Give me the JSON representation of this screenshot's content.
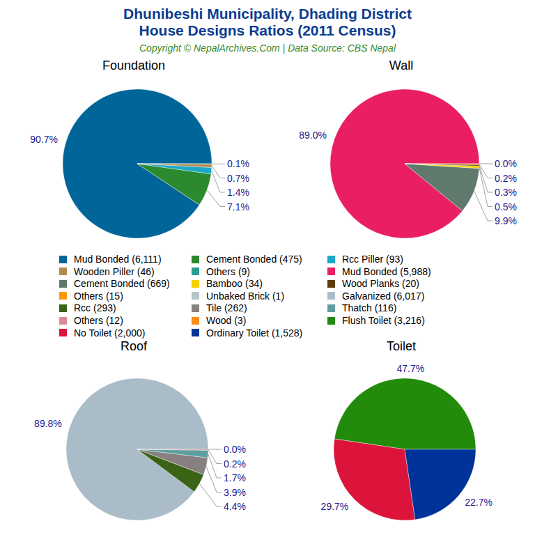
{
  "title": [
    "Dhunibeshi Municipality, Dhading District",
    "House Designs Ratios (2011 Census)"
  ],
  "subtitle": "Copyright © NepalArchives.Com | Data Source: CBS Nepal",
  "chart_data": [
    {
      "type": "pie",
      "title": "Foundation",
      "categories": [
        "Mud Bonded (6,111)",
        "Cement Bonded (475)",
        "Rcc Piller (93)",
        "Wooden Piller (46)",
        "Others (9)"
      ],
      "values": [
        90.7,
        7.1,
        1.4,
        0.7,
        0.1
      ],
      "value_labels": [
        "90.7%",
        "7.1%",
        "1.4%",
        "0.7%",
        "0.1%"
      ],
      "colors": [
        "#006699",
        "#2c8a2e",
        "#1ea8c8",
        "#b18b4e",
        "#2a9d8f"
      ],
      "data_labels": true
    },
    {
      "type": "pie",
      "title": "Wall",
      "categories": [
        "Mud Bonded (5,988)",
        "Cement Bonded (669)",
        "Bamboo (34)",
        "Wood Planks (20)",
        "Others (15)",
        "Unbaked Brick (1)"
      ],
      "values": [
        89.0,
        9.9,
        0.5,
        0.3,
        0.2,
        0.0
      ],
      "value_labels": [
        "89.0%",
        "9.9%",
        "0.5%",
        "0.3%",
        "0.2%",
        "0.0%"
      ],
      "colors": [
        "#e91e63",
        "#5f7a6d",
        "#f5d100",
        "#5c3a0a",
        "#ff9800",
        "#b8c4cc"
      ],
      "data_labels": true
    },
    {
      "type": "pie",
      "title": "Roof",
      "categories": [
        "Galvanized (6,017)",
        "Rcc (293)",
        "Tile (262)",
        "Thatch (116)",
        "Others (12)",
        "Wood (3)"
      ],
      "values": [
        89.8,
        4.4,
        3.9,
        1.7,
        0.2,
        0.0
      ],
      "value_labels": [
        "89.8%",
        "4.4%",
        "3.9%",
        "1.7%",
        "0.2%",
        "0.0%"
      ],
      "colors": [
        "#a9bcc8",
        "#3a6316",
        "#888080",
        "#5f9ea0",
        "#d98c93",
        "#ff8c1a"
      ],
      "data_labels": true
    },
    {
      "type": "pie",
      "title": "Toilet",
      "categories": [
        "Flush Toilet (3,216)",
        "No Toilet (2,000)",
        "Ordinary Toilet (1,528)"
      ],
      "values": [
        47.7,
        29.7,
        22.7
      ],
      "value_labels": [
        "47.7%",
        "29.7%",
        "22.7%"
      ],
      "colors": [
        "#228b0c",
        "#dc143c",
        "#003399"
      ],
      "data_labels": true
    }
  ]
}
